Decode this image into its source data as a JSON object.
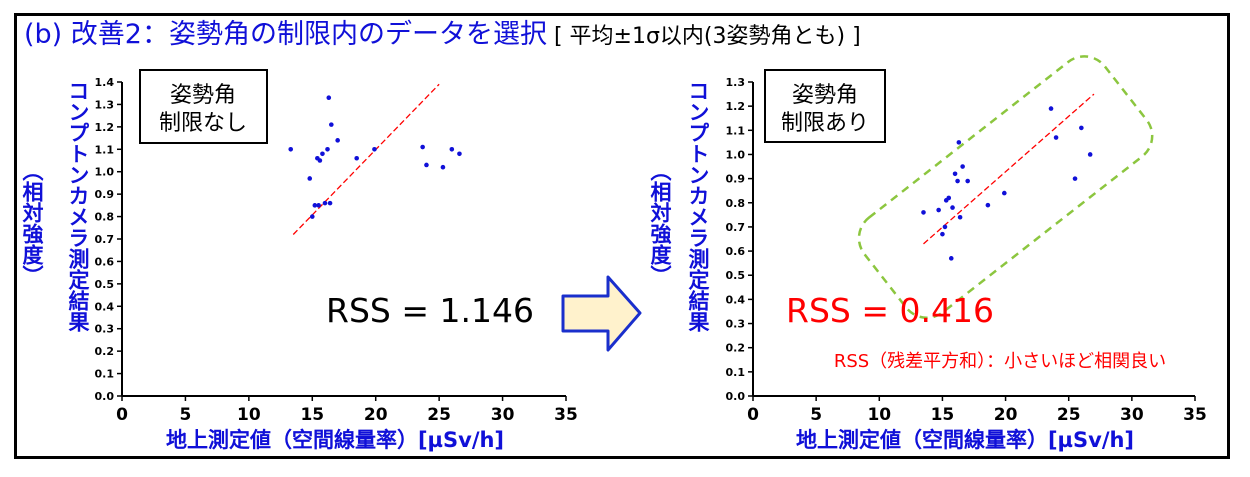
{
  "title": {
    "main": "(b) 改善2：姿勢角の制限内のデータを選択",
    "sub": " [ 平均±1σ以内(3姿勢角とも) ]"
  },
  "colors": {
    "title": "#1010d8",
    "points": "#1010d8",
    "fit": "#ff0000",
    "highlight": "#8cc63f",
    "arrow_fill": "#fff2cc",
    "arrow_stroke": "#1a2fcc"
  },
  "chart_data": [
    {
      "type": "scatter",
      "xlabel": "地上測定値（空間線量率）[µSv/h]",
      "ylabel_main": "コンプトンカメラ測定結果",
      "ylabel_sub": "（相対強度）",
      "xlim": [
        0,
        35
      ],
      "ylim": [
        0,
        1.4
      ],
      "xticks": [
        0,
        5,
        10,
        15,
        20,
        25,
        30,
        35
      ],
      "yticks": [
        0.0,
        0.1,
        0.2,
        0.3,
        0.4,
        0.5,
        0.6,
        0.7,
        0.8,
        0.9,
        1.0,
        1.1,
        1.2,
        1.3,
        1.4
      ],
      "box_label": [
        "姿勢角",
        "制限なし"
      ],
      "rss": "RSS = 1.146",
      "fit_line": {
        "x": [
          13.5,
          25.0
        ],
        "y": [
          0.72,
          1.39
        ]
      },
      "points": {
        "x": [
          13.3,
          14.8,
          15.0,
          15.2,
          15.4,
          15.5,
          15.6,
          15.8,
          16.0,
          16.2,
          16.3,
          16.4,
          16.5,
          17.0,
          18.5,
          19.9,
          23.7,
          24.0,
          25.3,
          26.0,
          26.6
        ],
        "y": [
          1.1,
          0.97,
          0.8,
          0.85,
          1.06,
          0.85,
          1.05,
          1.08,
          0.86,
          1.1,
          1.33,
          0.86,
          1.21,
          1.14,
          1.06,
          1.1,
          1.11,
          1.03,
          1.02,
          1.1,
          1.08
        ]
      }
    },
    {
      "type": "scatter",
      "xlabel": "地上測定値（空間線量率）[µSv/h]",
      "ylabel_main": "コンプトンカメラ測定結果",
      "ylabel_sub": "（相対強度）",
      "xlim": [
        0,
        35
      ],
      "ylim": [
        0,
        1.3
      ],
      "xticks": [
        0,
        5,
        10,
        15,
        20,
        25,
        30,
        35
      ],
      "yticks": [
        0.0,
        0.1,
        0.2,
        0.3,
        0.4,
        0.5,
        0.6,
        0.7,
        0.8,
        0.9,
        1.0,
        1.1,
        1.2,
        1.3
      ],
      "box_label": [
        "姿勢角",
        "制限あり"
      ],
      "rss": "RSS = 0.416",
      "rss_note": "RSS（残差平方和）：小さいほど相関良い",
      "fit_line": {
        "x": [
          13.5,
          27.0
        ],
        "y": [
          0.63,
          1.25
        ]
      },
      "points": {
        "x": [
          13.5,
          14.7,
          15.0,
          15.2,
          15.3,
          15.5,
          15.7,
          15.8,
          16.0,
          16.2,
          16.3,
          16.4,
          16.6,
          17.0,
          18.6,
          19.9,
          23.6,
          24.0,
          25.5,
          26.0,
          26.7
        ],
        "y": [
          0.76,
          0.77,
          0.67,
          0.7,
          0.81,
          0.82,
          0.57,
          0.78,
          0.92,
          0.89,
          1.05,
          0.74,
          0.95,
          0.89,
          0.79,
          0.84,
          1.19,
          1.07,
          0.9,
          1.11,
          1.0
        ]
      }
    }
  ]
}
